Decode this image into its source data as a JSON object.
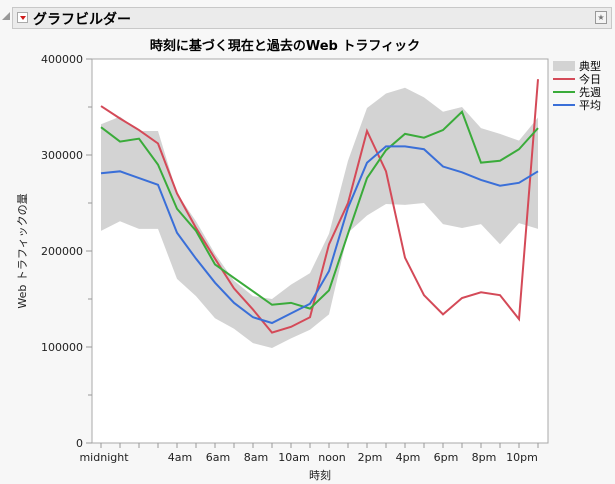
{
  "header": {
    "title": "グラフビルダー"
  },
  "chart_data": {
    "type": "line",
    "title": "時刻に基づく現在と過去のWeb トラフィック",
    "xlabel": "時刻",
    "ylabel": "Web トラフィックの量",
    "x": [
      0,
      1,
      2,
      3,
      4,
      5,
      6,
      7,
      8,
      9,
      10,
      11,
      12,
      13,
      14,
      15,
      16,
      17,
      18,
      19,
      20,
      21,
      22,
      23
    ],
    "x_tick_labels": [
      {
        "h": 0,
        "label": "midnight"
      },
      {
        "h": 4,
        "label": "4am"
      },
      {
        "h": 6,
        "label": "6am"
      },
      {
        "h": 8,
        "label": "8am"
      },
      {
        "h": 10,
        "label": "10am"
      },
      {
        "h": 12,
        "label": "noon"
      },
      {
        "h": 14,
        "label": "2pm"
      },
      {
        "h": 16,
        "label": "4pm"
      },
      {
        "h": 18,
        "label": "6pm"
      },
      {
        "h": 20,
        "label": "8pm"
      },
      {
        "h": 22,
        "label": "10pm"
      }
    ],
    "ylim": [
      0,
      400000
    ],
    "y_ticks": [
      "0",
      "100000",
      "200000",
      "300000",
      "400000"
    ],
    "legend_position": "right",
    "band": {
      "name": "典型",
      "color": "#d3d3d3",
      "upper": [
        332000,
        340000,
        325000,
        325000,
        260000,
        231000,
        197000,
        169000,
        153000,
        150000,
        165000,
        177000,
        218000,
        294000,
        349000,
        364000,
        370000,
        360000,
        345000,
        350000,
        328000,
        322000,
        315000,
        339000
      ],
      "lower": [
        221000,
        231000,
        223000,
        223000,
        171000,
        153000,
        130000,
        119000,
        104000,
        99000,
        109000,
        118000,
        134000,
        219000,
        237000,
        249000,
        248000,
        250000,
        228000,
        224000,
        228000,
        207000,
        229000,
        223000
      ]
    },
    "series": [
      {
        "name": "今日",
        "color": "#d44a58",
        "values": [
          351000,
          338000,
          326000,
          312000,
          260000,
          224000,
          192000,
          161000,
          139000,
          115000,
          121000,
          131000,
          207000,
          250000,
          325000,
          283000,
          193000,
          154000,
          134000,
          151000,
          157000,
          154000,
          129000,
          379000
        ]
      },
      {
        "name": "先週",
        "color": "#3aab3a",
        "values": [
          329000,
          314000,
          317000,
          290000,
          244000,
          221000,
          186000,
          172000,
          158000,
          144000,
          146000,
          140000,
          159000,
          218000,
          276000,
          305000,
          322000,
          318000,
          326000,
          345000,
          292000,
          294000,
          306000,
          328000
        ]
      },
      {
        "name": "平均",
        "color": "#3a6fd8",
        "values": [
          281000,
          283000,
          276000,
          269000,
          219000,
          192000,
          167000,
          146000,
          131000,
          125000,
          135000,
          145000,
          179000,
          245000,
          292000,
          309000,
          309000,
          306000,
          288000,
          282000,
          274000,
          268000,
          271000,
          283000
        ]
      }
    ]
  }
}
